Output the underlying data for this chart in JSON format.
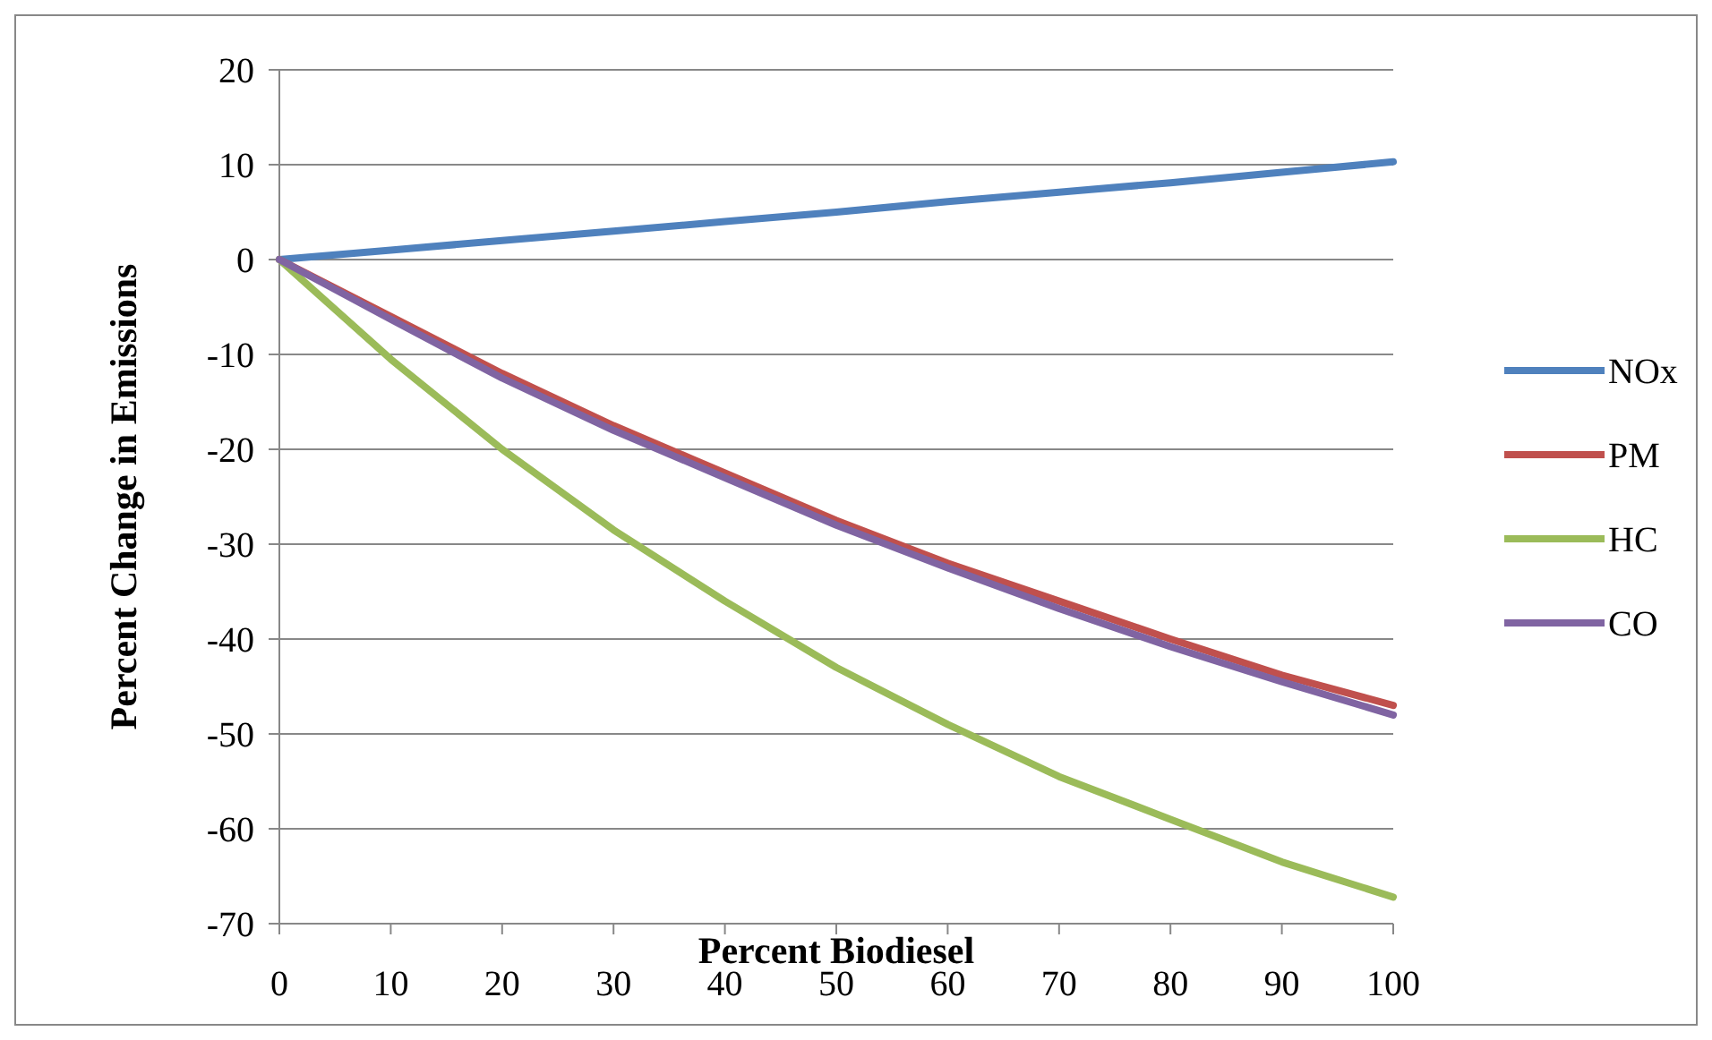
{
  "chart_data": {
    "type": "line",
    "xlabel": "Percent Biodiesel",
    "ylabel": "Percent Change in Emissions",
    "x": [
      0,
      10,
      20,
      30,
      40,
      50,
      60,
      70,
      80,
      90,
      100
    ],
    "series": [
      {
        "name": "NOx",
        "color": "#4f81bd",
        "values": [
          0,
          1,
          2,
          3,
          4,
          5,
          6.1,
          7.1,
          8.1,
          9.2,
          10.3
        ]
      },
      {
        "name": "PM",
        "color": "#c0504d",
        "values": [
          0,
          -6,
          -12,
          -17.5,
          -22.5,
          -27.5,
          -32,
          -36,
          -40,
          -43.8,
          -47
        ]
      },
      {
        "name": "HC",
        "color": "#9bbb59",
        "values": [
          0,
          -10.5,
          -20,
          -28.5,
          -36,
          -43,
          -49,
          -54.5,
          -59,
          -63.5,
          -67.2
        ]
      },
      {
        "name": "CO",
        "color": "#8064a2",
        "values": [
          0,
          -6.3,
          -12.5,
          -18,
          -23,
          -28,
          -32.5,
          -36.8,
          -40.8,
          -44.5,
          -48
        ]
      }
    ],
    "xlim": [
      0,
      100
    ],
    "xticks": [
      0,
      10,
      20,
      30,
      40,
      50,
      60,
      70,
      80,
      90,
      100
    ],
    "ylim": [
      -70,
      20
    ],
    "yticks": [
      -70,
      -60,
      -50,
      -40,
      -30,
      -20,
      -10,
      0,
      10,
      20
    ],
    "grid": "y",
    "legend": "right",
    "marker": "none",
    "line_style": "solid"
  }
}
